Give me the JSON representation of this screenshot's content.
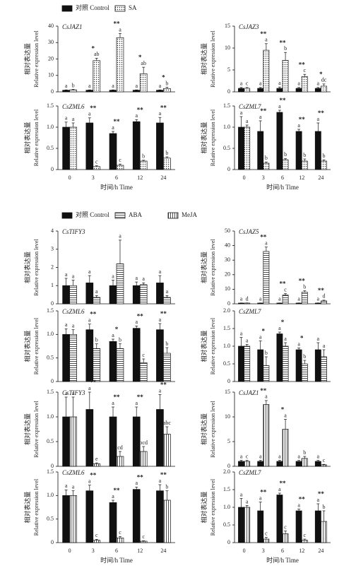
{
  "legends": [
    [
      {
        "name": "对照 Control",
        "fill": "black"
      },
      {
        "name": "SA",
        "fill": "dots"
      }
    ],
    [
      {
        "name": "对照 Control",
        "fill": "black"
      },
      {
        "name": "ABA",
        "fill": "hlines"
      },
      {
        "name": "MeJA",
        "fill": "vlines"
      }
    ]
  ],
  "chart_data": [
    {
      "type": "bar",
      "title": "CsJAZ1",
      "y_label": [
        "相对表达量",
        "Relative expression level"
      ],
      "categories": [
        null,
        null,
        null,
        null,
        null
      ],
      "ylim": [
        0,
        40
      ],
      "yticks": [
        0,
        10,
        20,
        30,
        40
      ],
      "series": [
        {
          "fill": "black",
          "values": [
            1,
            1,
            1,
            1,
            1
          ],
          "errors": [
            0.2,
            0.2,
            0.2,
            0.2,
            0.2
          ],
          "letters": [
            "a",
            "a",
            "a",
            "a",
            "a"
          ]
        },
        {
          "fill": "dots",
          "values": [
            1.2,
            19,
            33,
            11,
            2
          ],
          "errors": [
            0.3,
            1.5,
            2.5,
            4,
            0.8
          ],
          "letters": [
            "b",
            "ab",
            "a",
            "ab",
            "b"
          ]
        }
      ],
      "stars": [
        null,
        "*",
        "**",
        "*",
        "*"
      ]
    },
    {
      "type": "bar",
      "title": "CsJAZ3",
      "y_label": [
        "相对表达量",
        "Relative expression level"
      ],
      "categories": [
        null,
        null,
        null,
        null,
        null
      ],
      "ylim": [
        0,
        15
      ],
      "yticks": [
        0,
        5,
        10,
        15
      ],
      "series": [
        {
          "fill": "black",
          "values": [
            0.8,
            0.8,
            0.8,
            0.8,
            0.8
          ],
          "errors": [
            0.2,
            0.2,
            0.3,
            0.2,
            0.2
          ],
          "letters": [
            "a",
            "a",
            "a",
            "a",
            "a"
          ]
        },
        {
          "fill": "dots",
          "values": [
            0.8,
            9.5,
            7.2,
            3.5,
            1.3
          ],
          "errors": [
            0.2,
            1.5,
            1.8,
            0.5,
            0.5
          ],
          "letters": [
            "c",
            "a",
            "b",
            "c",
            "dc"
          ]
        }
      ],
      "stars": [
        null,
        "**",
        "**",
        "**",
        "*"
      ]
    },
    {
      "type": "bar",
      "title": "CsZML6",
      "y_label": [
        "相对表达量",
        "Relative expression level"
      ],
      "categories": [
        "0",
        "3",
        "6",
        "12",
        "24"
      ],
      "x_label": "时间/h Time",
      "ylim": [
        0,
        1.5
      ],
      "yticks": [
        0,
        0.5,
        {
          "value": 1,
          "label": "1.0"
        },
        1.5
      ],
      "series": [
        {
          "fill": "black",
          "values": [
            1,
            1.1,
            0.85,
            1.13,
            1.1
          ],
          "errors": [
            0.12,
            0.12,
            0.05,
            0.05,
            0.13
          ],
          "letters": [
            "a",
            "a",
            "a",
            "a",
            "a"
          ]
        },
        {
          "fill": "dots",
          "values": [
            1,
            0.07,
            0.1,
            0.2,
            0.27
          ],
          "errors": [
            0.1,
            0.02,
            0.03,
            0.02,
            0.03
          ],
          "letters": [
            "a",
            "c",
            "c",
            "b",
            "b"
          ]
        }
      ],
      "stars": [
        null,
        "**",
        "**",
        "**",
        "**"
      ]
    },
    {
      "type": "bar",
      "title": "CsZML7",
      "y_label": [
        "相对表达量",
        "Relative expression level"
      ],
      "categories": [
        "0",
        "3",
        "6",
        "12",
        "24"
      ],
      "x_label": "时间/h Time",
      "ylim": [
        0,
        1.5
      ],
      "yticks": [
        0,
        0.5,
        {
          "value": 1,
          "label": "1.0"
        },
        1.5
      ],
      "series": [
        {
          "fill": "black",
          "values": [
            1,
            0.9,
            1.35,
            0.9,
            0.9
          ],
          "errors": [
            0.25,
            0.25,
            0.05,
            0.05,
            0.2
          ],
          "letters": [
            "a",
            "a",
            "a",
            "a",
            "a"
          ]
        },
        {
          "fill": "dots",
          "values": [
            1,
            0.15,
            0.23,
            0.2,
            0.2
          ],
          "errors": [
            0.05,
            0.03,
            0.03,
            0.05,
            0.03
          ],
          "letters": [
            "a",
            "b",
            "b",
            "b",
            "b"
          ]
        }
      ],
      "stars": [
        null,
        "**",
        "**",
        "**",
        "**"
      ]
    },
    {
      "type": "bar",
      "title": "CsTIFY3",
      "y_label": [
        "相对表达量",
        "Relative expression level"
      ],
      "categories": [
        null,
        null,
        null,
        null,
        null
      ],
      "ylim": [
        0,
        4
      ],
      "yticks": [
        0,
        1,
        2,
        3,
        4
      ],
      "series": [
        {
          "fill": "black",
          "values": [
            1,
            1.15,
            1,
            1,
            1.15
          ],
          "errors": [
            0.4,
            0.4,
            0.3,
            0.2,
            0.4
          ],
          "letters": [
            "a",
            "a",
            "a",
            "a",
            "a"
          ]
        },
        {
          "fill": "hlines",
          "values": [
            1,
            0.35,
            2.2,
            1.05,
            0.35
          ],
          "errors": [
            0.3,
            0.1,
            1.3,
            0.1,
            0.1
          ],
          "letters": [
            "a",
            "a",
            "a",
            "a",
            "a"
          ]
        }
      ],
      "stars": [
        null,
        null,
        null,
        null,
        null
      ]
    },
    {
      "type": "bar",
      "title": "CsJAZ5",
      "y_label": [
        "相对表达量",
        "Relative expression level"
      ],
      "categories": [
        null,
        null,
        null,
        null,
        null
      ],
      "ylim": [
        0,
        50
      ],
      "yticks": [
        0,
        10,
        20,
        30,
        40,
        50
      ],
      "series": [
        {
          "fill": "black",
          "values": [
            0.5,
            0.5,
            0.5,
            0.5,
            0.5
          ],
          "errors": [
            0.1,
            0.1,
            0.1,
            0.1,
            0.1
          ],
          "letters": [
            "a",
            "a",
            "a",
            "a",
            "a"
          ]
        },
        {
          "fill": "hlines",
          "values": [
            0.5,
            36,
            6,
            8,
            2
          ],
          "errors": [
            0.1,
            3,
            1,
            1,
            0.5
          ],
          "letters": [
            "d",
            "a",
            "c",
            "b",
            "d"
          ]
        }
      ],
      "stars": [
        null,
        "**",
        "**",
        "**",
        "**"
      ]
    },
    {
      "type": "bar",
      "title": "CsZML6",
      "y_label": [
        "相对表达量",
        "Relative expression level"
      ],
      "categories": [
        null,
        null,
        null,
        null,
        null
      ],
      "ylim": [
        0,
        1.5
      ],
      "yticks": [
        0,
        0.5,
        {
          "value": 1,
          "label": "1.0"
        },
        1.5
      ],
      "series": [
        {
          "fill": "black",
          "values": [
            1,
            1.1,
            0.85,
            1.13,
            1.1
          ],
          "errors": [
            0.12,
            0.12,
            0.05,
            0.05,
            0.13
          ],
          "letters": [
            "a",
            "a",
            "a",
            "a",
            "a"
          ]
        },
        {
          "fill": "hlines",
          "values": [
            1,
            0.7,
            0.7,
            0.4,
            0.6
          ],
          "errors": [
            0.1,
            0.1,
            0.1,
            0.08,
            0.12
          ],
          "letters": [
            "a",
            "b",
            "b",
            "c",
            "b"
          ]
        }
      ],
      "stars": [
        null,
        "**",
        "*",
        "**",
        "**"
      ]
    },
    {
      "type": "bar",
      "title": "CsZML7",
      "y_label": [
        "相对表达量",
        "Relative expression level"
      ],
      "categories": [
        null,
        null,
        null,
        null,
        null
      ],
      "ylim": [
        0,
        2
      ],
      "yticks": [
        0,
        0.5,
        {
          "value": 1,
          "label": "1.0"
        },
        1.5,
        {
          "value": 2,
          "label": "2.0"
        }
      ],
      "series": [
        {
          "fill": "black",
          "values": [
            1,
            0.9,
            1.35,
            0.9,
            0.9
          ],
          "errors": [
            0.25,
            0.25,
            0.05,
            0.05,
            0.2
          ],
          "letters": [
            "a",
            "a",
            "a",
            "a",
            "a"
          ]
        },
        {
          "fill": "hlines",
          "values": [
            1,
            0.45,
            1,
            0.5,
            0.7
          ],
          "errors": [
            0.05,
            0.25,
            0.1,
            0.1,
            0.2
          ],
          "letters": [
            "a",
            "b",
            "a",
            "b",
            "a"
          ]
        }
      ],
      "stars": [
        null,
        "*",
        "*",
        "*",
        null
      ]
    },
    {
      "type": "bar",
      "title": "CsTIFY3",
      "y_label": [
        "相对表达量",
        "Relative expression level"
      ],
      "categories": [
        null,
        null,
        null,
        null,
        null
      ],
      "ylim": [
        0,
        1.5
      ],
      "yticks": [
        0,
        0.5,
        {
          "value": 1,
          "label": "1.0"
        },
        1.5
      ],
      "series": [
        {
          "fill": "black",
          "values": [
            1,
            1.15,
            1,
            1,
            1.15
          ],
          "errors": [
            0.4,
            0.35,
            0.2,
            0.2,
            0.3
          ],
          "letters": [
            "a",
            "a",
            "a",
            "a",
            "a"
          ]
        },
        {
          "fill": "vlines",
          "values": [
            1,
            0.05,
            0.2,
            0.3,
            0.65
          ],
          "errors": [
            0.4,
            0.02,
            0.1,
            0.1,
            0.15
          ],
          "letters": [
            "a",
            "e",
            "cd",
            "bcd",
            "abc"
          ]
        }
      ],
      "stars": [
        null,
        "**",
        "**",
        "**",
        "**"
      ]
    },
    {
      "type": "bar",
      "title": "CsJAZ1",
      "y_label": [
        "相对表达量",
        "Relative expression level"
      ],
      "categories": [
        null,
        null,
        null,
        null,
        null
      ],
      "ylim": [
        0,
        15
      ],
      "yticks": [
        0,
        5,
        10,
        15
      ],
      "series": [
        {
          "fill": "black",
          "values": [
            1,
            1,
            1,
            1,
            1
          ],
          "errors": [
            0.2,
            0.2,
            0.2,
            0.2,
            0.2
          ],
          "letters": [
            "a",
            "a",
            "a",
            "a",
            "a"
          ]
        },
        {
          "fill": "vlines",
          "values": [
            1,
            12.5,
            7.5,
            1.6,
            0.3
          ],
          "errors": [
            0.2,
            0.8,
            2,
            0.4,
            0.1
          ],
          "letters": [
            "c",
            "a",
            "a",
            "b",
            "c"
          ]
        }
      ],
      "stars": [
        null,
        "**",
        "*",
        null,
        null
      ]
    },
    {
      "type": "bar",
      "title": "CsZML6",
      "y_label": [
        "相对表达量",
        "Relative expression level"
      ],
      "categories": [
        "0",
        "3",
        "6",
        "12",
        "24"
      ],
      "x_label": "时间/h Time",
      "ylim": [
        0,
        1.5
      ],
      "yticks": [
        0,
        0.5,
        {
          "value": 1,
          "label": "1.0"
        },
        1.5
      ],
      "series": [
        {
          "fill": "black",
          "values": [
            1,
            1.1,
            0.85,
            1.13,
            1.1
          ],
          "errors": [
            0.12,
            0.12,
            0.05,
            0.05,
            0.13
          ],
          "letters": [
            "a",
            "a",
            "a",
            "a",
            "a"
          ]
        },
        {
          "fill": "vlines",
          "values": [
            1,
            0.05,
            0.1,
            0.03,
            0.9
          ],
          "errors": [
            0.1,
            0.02,
            0.03,
            0.01,
            0.2
          ],
          "letters": [
            "a",
            "c",
            "c",
            "c",
            "b"
          ]
        }
      ],
      "stars": [
        null,
        "**",
        "**",
        "**",
        "**"
      ]
    },
    {
      "type": "bar",
      "title": "CsZML7",
      "y_label": [
        "相对表达量",
        "Relative expression level"
      ],
      "categories": [
        "0",
        "3",
        "6",
        "12",
        "24"
      ],
      "x_label": "时间/h Time",
      "ylim": [
        0,
        2
      ],
      "yticks": [
        0,
        0.5,
        {
          "value": 1,
          "label": "1.0"
        },
        1.5,
        {
          "value": 2,
          "label": "2.0"
        }
      ],
      "series": [
        {
          "fill": "black",
          "values": [
            1,
            0.9,
            1.35,
            0.9,
            0.9
          ],
          "errors": [
            0.25,
            0.25,
            0.05,
            0.05,
            0.2
          ],
          "letters": [
            "a",
            "a",
            "a",
            "a",
            "a"
          ]
        },
        {
          "fill": "vlines",
          "values": [
            1,
            0.1,
            0.25,
            0.07,
            0.6
          ],
          "errors": [
            0.05,
            0.05,
            0.08,
            0.03,
            0.3
          ],
          "letters": [
            "a",
            "c",
            "c",
            "c",
            "b"
          ]
        }
      ],
      "stars": [
        null,
        "**",
        "**",
        "**",
        "**"
      ]
    }
  ]
}
